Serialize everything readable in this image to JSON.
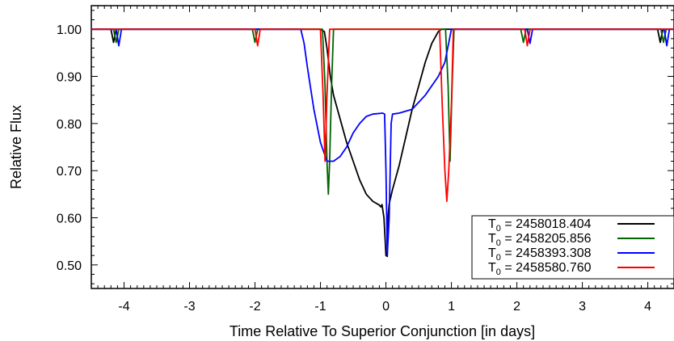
{
  "chart_data": {
    "type": "line",
    "title": "",
    "xlabel": "Time Relative To Superior Conjunction [in days]",
    "ylabel": "Relative Flux",
    "xlim": [
      -4.5,
      4.4
    ],
    "ylim": [
      0.45,
      1.05
    ],
    "xticks": [
      -4,
      -3,
      -2,
      -1,
      0,
      1,
      2,
      3,
      4
    ],
    "xtick_labels": [
      "-4",
      "-3",
      "-2",
      "-1",
      "0",
      "1",
      "2",
      "3",
      "4"
    ],
    "yticks": [
      0.5,
      0.6,
      0.7,
      0.8,
      0.9,
      1.0
    ],
    "ytick_labels": [
      "0.50",
      "0.60",
      "0.70",
      "0.80",
      "0.90",
      "1.00"
    ],
    "grid": false,
    "legend_position": "bottom-right",
    "series": [
      {
        "name": "T0 = 2458018.404",
        "legend_main": "T",
        "legend_sub": "0",
        "legend_rest": " = 2458018.404",
        "color": "#000000",
        "points": [
          [
            -4.5,
            1.0
          ],
          [
            -4.2,
            1.0
          ],
          [
            -4.16,
            0.972
          ],
          [
            -4.12,
            1.0
          ],
          [
            -2.0,
            1.0
          ],
          [
            -1.0,
            1.0
          ],
          [
            -0.94,
            0.995
          ],
          [
            -0.9,
            0.96
          ],
          [
            -0.85,
            0.9
          ],
          [
            -0.8,
            0.86
          ],
          [
            -0.7,
            0.81
          ],
          [
            -0.6,
            0.76
          ],
          [
            -0.5,
            0.72
          ],
          [
            -0.4,
            0.68
          ],
          [
            -0.3,
            0.65
          ],
          [
            -0.2,
            0.635
          ],
          [
            -0.1,
            0.627
          ],
          [
            -0.08,
            0.623
          ],
          [
            -0.06,
            0.628
          ],
          [
            -0.03,
            0.6
          ],
          [
            0.0,
            0.52
          ],
          [
            0.02,
            0.518
          ],
          [
            0.03,
            0.6
          ],
          [
            0.05,
            0.63
          ],
          [
            0.1,
            0.66
          ],
          [
            0.2,
            0.71
          ],
          [
            0.3,
            0.77
          ],
          [
            0.4,
            0.83
          ],
          [
            0.5,
            0.88
          ],
          [
            0.6,
            0.93
          ],
          [
            0.7,
            0.97
          ],
          [
            0.8,
            0.995
          ],
          [
            0.85,
            1.0
          ],
          [
            4.15,
            1.0
          ],
          [
            4.19,
            0.972
          ],
          [
            4.23,
            1.0
          ],
          [
            4.4,
            1.0
          ]
        ]
      },
      {
        "name": "T0 = 2458205.856",
        "legend_main": "T",
        "legend_sub": "0",
        "legend_rest": " = 2458205.856",
        "color": "#006400",
        "points": [
          [
            -4.5,
            1.0
          ],
          [
            -4.16,
            1.0
          ],
          [
            -4.12,
            0.972
          ],
          [
            -4.08,
            1.0
          ],
          [
            -2.04,
            1.0
          ],
          [
            -2.0,
            0.972
          ],
          [
            -1.96,
            1.0
          ],
          [
            -0.97,
            1.0
          ],
          [
            -0.93,
            0.88
          ],
          [
            -0.9,
            0.72
          ],
          [
            -0.88,
            0.65
          ],
          [
            -0.86,
            0.72
          ],
          [
            -0.83,
            0.88
          ],
          [
            -0.8,
            1.0
          ],
          [
            0.91,
            1.0
          ],
          [
            0.95,
            0.88
          ],
          [
            0.98,
            0.72
          ],
          [
            1.01,
            0.88
          ],
          [
            1.04,
            1.0
          ],
          [
            2.06,
            1.0
          ],
          [
            2.1,
            0.972
          ],
          [
            2.14,
            1.0
          ],
          [
            4.2,
            1.0
          ],
          [
            4.24,
            0.972
          ],
          [
            4.28,
            1.0
          ],
          [
            4.4,
            1.0
          ]
        ]
      },
      {
        "name": "T0 = 2458393.308",
        "legend_main": "T",
        "legend_sub": "0",
        "legend_rest": " = 2458393.308",
        "color": "#0000ff",
        "points": [
          [
            -4.5,
            1.0
          ],
          [
            -4.12,
            1.0
          ],
          [
            -4.08,
            0.965
          ],
          [
            -4.04,
            1.0
          ],
          [
            -1.3,
            1.0
          ],
          [
            -1.25,
            0.97
          ],
          [
            -1.2,
            0.92
          ],
          [
            -1.1,
            0.83
          ],
          [
            -1.0,
            0.76
          ],
          [
            -0.9,
            0.72
          ],
          [
            -0.8,
            0.72
          ],
          [
            -0.7,
            0.73
          ],
          [
            -0.6,
            0.75
          ],
          [
            -0.5,
            0.78
          ],
          [
            -0.4,
            0.8
          ],
          [
            -0.3,
            0.815
          ],
          [
            -0.2,
            0.82
          ],
          [
            -0.05,
            0.822
          ],
          [
            -0.02,
            0.82
          ],
          [
            0.0,
            0.7
          ],
          [
            0.02,
            0.52
          ],
          [
            0.05,
            0.6
          ],
          [
            0.08,
            0.8
          ],
          [
            0.1,
            0.82
          ],
          [
            0.2,
            0.822
          ],
          [
            0.4,
            0.83
          ],
          [
            0.6,
            0.86
          ],
          [
            0.8,
            0.9
          ],
          [
            0.9,
            0.93
          ],
          [
            1.0,
            1.0
          ],
          [
            2.16,
            1.0
          ],
          [
            2.2,
            0.97
          ],
          [
            2.24,
            1.0
          ],
          [
            4.25,
            1.0
          ],
          [
            4.29,
            0.965
          ],
          [
            4.33,
            1.0
          ],
          [
            4.4,
            1.0
          ]
        ]
      },
      {
        "name": "T0 = 2458580.760",
        "legend_main": "T",
        "legend_sub": "0",
        "legend_rest": " = 2458580.760",
        "color": "#ff0000",
        "points": [
          [
            -4.5,
            1.0
          ],
          [
            -2.0,
            1.0
          ],
          [
            -1.96,
            0.965
          ],
          [
            -1.92,
            1.0
          ],
          [
            -1.0,
            1.0
          ],
          [
            -0.96,
            0.86
          ],
          [
            -0.93,
            0.72
          ],
          [
            -0.9,
            0.86
          ],
          [
            -0.86,
            1.0
          ],
          [
            0.82,
            1.0
          ],
          [
            0.86,
            0.84
          ],
          [
            0.9,
            0.7
          ],
          [
            0.93,
            0.635
          ],
          [
            0.96,
            0.7
          ],
          [
            1.0,
            0.84
          ],
          [
            1.03,
            1.0
          ],
          [
            2.12,
            1.0
          ],
          [
            2.16,
            0.965
          ],
          [
            2.2,
            1.0
          ],
          [
            4.4,
            1.0
          ]
        ]
      }
    ]
  }
}
